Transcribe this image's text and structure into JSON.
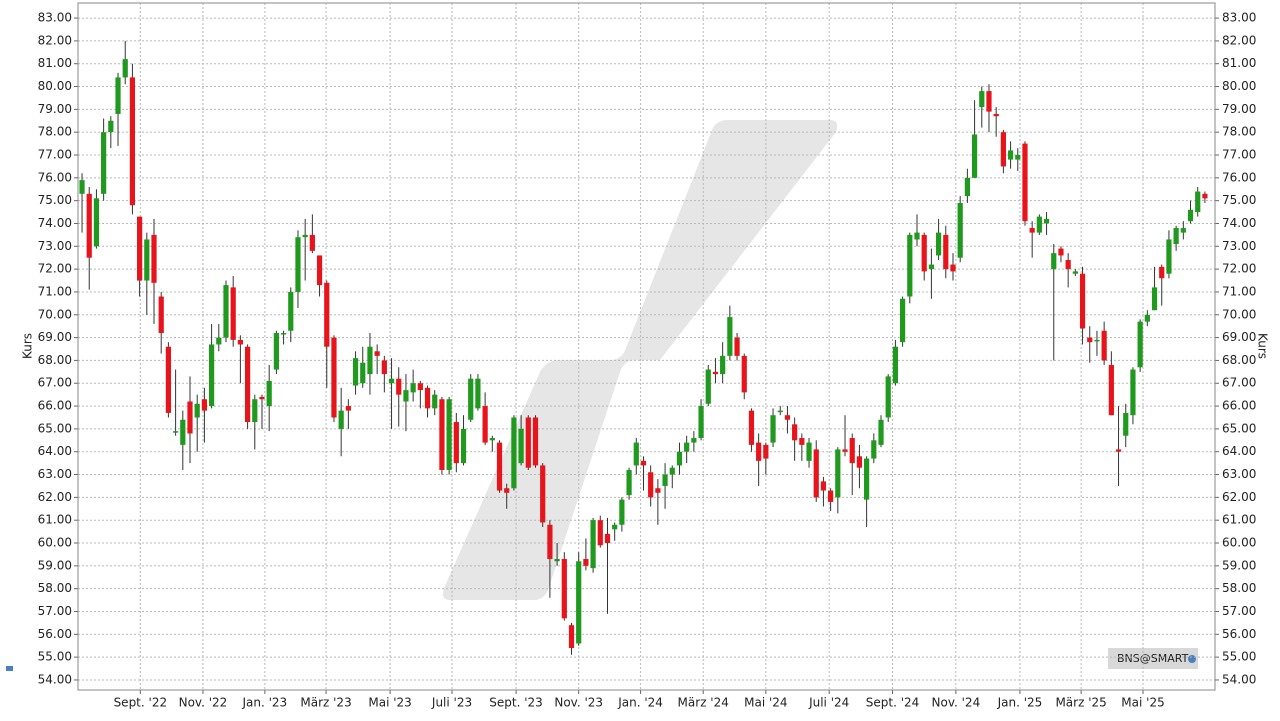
{
  "chart_data": {
    "type": "candlestick",
    "y_label": "Kurs",
    "source": "BNS@SMART",
    "grid": true,
    "colors": {
      "up": "#1f9a1f",
      "down": "#e8141c"
    },
    "xlim": [
      -0.56,
      157.4
    ],
    "xticks": [
      {
        "value": 8.1,
        "label": "Sept. '22"
      },
      {
        "value": 16.8,
        "label": "Nov. '22"
      },
      {
        "value": 25.4,
        "label": "Jan. '23"
      },
      {
        "value": 33.9,
        "label": "März '23"
      },
      {
        "value": 42.8,
        "label": "Mai '23"
      },
      {
        "value": 51.4,
        "label": "Juli '23"
      },
      {
        "value": 60.3,
        "label": "Sept. '23"
      },
      {
        "value": 69.0,
        "label": "Nov. '23"
      },
      {
        "value": 77.6,
        "label": "Jan. '24"
      },
      {
        "value": 86.3,
        "label": "März '24"
      },
      {
        "value": 95.0,
        "label": "Mai '24"
      },
      {
        "value": 103.8,
        "label": "Juli '24"
      },
      {
        "value": 112.6,
        "label": "Sept. '24"
      },
      {
        "value": 121.4,
        "label": "Nov. '24"
      },
      {
        "value": 130.3,
        "label": "Jan. '25"
      },
      {
        "value": 138.8,
        "label": "März '25"
      },
      {
        "value": 147.4,
        "label": "Mai '25"
      }
    ],
    "ylim": [
      53.56,
      83.66
    ],
    "yticks": [
      {
        "value": 54,
        "label": "54.00"
      },
      {
        "value": 55,
        "label": "55.00"
      },
      {
        "value": 56,
        "label": "56.00"
      },
      {
        "value": 57,
        "label": "57.00"
      },
      {
        "value": 58,
        "label": "58.00"
      },
      {
        "value": 59,
        "label": "59.00"
      },
      {
        "value": 60,
        "label": "60.00"
      },
      {
        "value": 61,
        "label": "61.00"
      },
      {
        "value": 62,
        "label": "62.00"
      },
      {
        "value": 63,
        "label": "63.00"
      },
      {
        "value": 64,
        "label": "64.00"
      },
      {
        "value": 65,
        "label": "65.00"
      },
      {
        "value": 66,
        "label": "66.00"
      },
      {
        "value": 67,
        "label": "67.00"
      },
      {
        "value": 68,
        "label": "68.00"
      },
      {
        "value": 69,
        "label": "69.00"
      },
      {
        "value": 70,
        "label": "70.00"
      },
      {
        "value": 71,
        "label": "71.00"
      },
      {
        "value": 72,
        "label": "72.00"
      },
      {
        "value": 73,
        "label": "73.00"
      },
      {
        "value": 74,
        "label": "74.00"
      },
      {
        "value": 75,
        "label": "75.00"
      },
      {
        "value": 76,
        "label": "76.00"
      },
      {
        "value": 77,
        "label": "77.00"
      },
      {
        "value": 78,
        "label": "78.00"
      },
      {
        "value": 79,
        "label": "79.00"
      },
      {
        "value": 80,
        "label": "80.00"
      },
      {
        "value": 81,
        "label": "81.00"
      },
      {
        "value": 82,
        "label": "82.00"
      },
      {
        "value": 83,
        "label": "83.00"
      }
    ],
    "open": [
      75.3,
      75.3,
      73.0,
      75.3,
      78.0,
      78.8,
      80.4,
      80.4,
      74.3,
      71.5,
      73.5,
      70.8,
      68.6,
      64.9,
      64.3,
      66.2,
      65.5,
      66.3,
      66.0,
      68.7,
      69.0,
      71.2,
      68.9,
      68.6,
      65.3,
      66.4,
      66.0,
      67.6,
      69.2,
      69.3,
      71.0,
      73.4,
      73.5,
      72.6,
      71.4,
      69.0,
      65.0,
      66.0,
      66.9,
      67.0,
      67.4,
      68.4,
      68.0,
      67.0,
      67.2,
      66.2,
      66.6,
      67.0,
      66.8,
      65.9,
      66.3,
      63.2,
      65.3,
      63.5,
      65.4,
      65.9,
      66.0,
      64.5,
      64.4,
      62.4,
      62.4,
      63.5,
      65.5,
      65.5,
      63.4,
      60.8,
      59.2,
      59.3,
      56.4,
      55.6,
      59.3,
      58.9,
      61.0,
      60.4,
      60.6,
      60.8,
      62.1,
      63.4,
      63.6,
      63.1,
      62.4,
      62.5,
      63.0,
      63.4,
      64.0,
      64.4,
      64.6,
      66.1,
      67.5,
      67.4,
      68.2,
      69.0,
      68.2,
      65.8,
      64.4,
      64.3,
      64.4,
      65.8,
      65.6,
      65.2,
      64.6,
      63.6,
      64.1,
      62.7,
      62.3,
      62.0,
      64.1,
      64.6,
      63.8,
      61.9,
      63.7,
      64.3,
      65.5,
      67.0,
      68.8,
      70.8,
      73.3,
      73.5,
      72.0,
      72.6,
      73.5,
      72.2,
      72.5,
      75.2,
      76.0,
      79.1,
      79.8,
      78.8,
      78.0,
      76.8,
      76.8,
      77.5,
      73.8,
      73.6,
      74.0,
      72.0,
      72.9,
      72.4,
      71.8,
      71.8,
      69.0,
      68.9,
      69.3,
      67.8,
      64.1,
      64.7,
      65.6,
      67.7,
      69.7,
      70.2,
      72.1,
      71.8,
      73.1,
      73.6,
      74.1,
      74.5,
      75.3
    ],
    "high": [
      76.2,
      75.6,
      75.5,
      78.6,
      78.7,
      80.6,
      82.0,
      81.0,
      74.3,
      73.6,
      74.2,
      71.0,
      68.8,
      67.6,
      65.8,
      67.3,
      66.5,
      66.8,
      69.6,
      69.6,
      71.5,
      71.7,
      69.1,
      68.7,
      66.5,
      66.5,
      67.8,
      69.3,
      69.3,
      71.2,
      73.7,
      74.2,
      74.4,
      72.6,
      71.5,
      69.1,
      66.8,
      66.3,
      68.4,
      68.6,
      69.2,
      68.7,
      68.2,
      68.1,
      67.7,
      67.4,
      67.6,
      67.1,
      66.9,
      66.7,
      66.4,
      66.4,
      65.7,
      65.6,
      67.4,
      67.4,
      66.6,
      64.7,
      64.5,
      62.6,
      65.6,
      65.6,
      65.6,
      65.6,
      63.5,
      61.0,
      60.0,
      59.6,
      56.5,
      59.6,
      60.2,
      61.1,
      61.2,
      61.1,
      60.9,
      62.0,
      63.3,
      64.6,
      63.8,
      63.4,
      62.8,
      63.5,
      63.4,
      64.4,
      64.7,
      64.9,
      66.3,
      67.8,
      68.1,
      68.8,
      70.4,
      69.2,
      68.3,
      65.9,
      64.8,
      64.4,
      65.9,
      66.0,
      66.0,
      65.5,
      64.8,
      64.6,
      64.5,
      62.9,
      62.4,
      64.2,
      65.6,
      64.8,
      64.3,
      63.8,
      64.8,
      65.6,
      67.4,
      68.9,
      70.8,
      73.6,
      74.4,
      73.6,
      72.9,
      74.2,
      73.9,
      72.7,
      75.2,
      76.4,
      79.4,
      80.0,
      80.1,
      79.1,
      78.1,
      77.6,
      77.3,
      77.6,
      74.1,
      74.4,
      74.5,
      73.1,
      73.0,
      72.7,
      72.0,
      72.1,
      69.5,
      69.3,
      69.7,
      68.4,
      66.0,
      66.1,
      67.7,
      69.8,
      70.2,
      72.1,
      72.2,
      73.7,
      73.9,
      74.1,
      75.0,
      75.6,
      75.4
    ],
    "low": [
      73.6,
      71.1,
      72.9,
      75.0,
      77.3,
      77.4,
      80.1,
      74.4,
      70.8,
      70.0,
      69.6,
      68.3,
      65.5,
      64.7,
      63.2,
      63.5,
      64.0,
      64.4,
      65.9,
      68.4,
      68.8,
      68.6,
      67.0,
      65.0,
      64.1,
      65.0,
      64.9,
      67.4,
      68.7,
      68.8,
      70.3,
      71.5,
      72.7,
      70.8,
      66.8,
      65.3,
      63.8,
      65.0,
      66.5,
      66.8,
      66.5,
      67.4,
      66.6,
      65.0,
      65.1,
      64.9,
      66.2,
      65.9,
      65.5,
      65.6,
      63.0,
      63.0,
      63.1,
      63.4,
      65.3,
      65.8,
      64.3,
      64.0,
      62.2,
      61.5,
      62.3,
      63.4,
      63.2,
      63.3,
      60.7,
      57.6,
      59.0,
      56.6,
      55.1,
      55.5,
      58.8,
      58.7,
      59.8,
      56.9,
      60.1,
      60.5,
      61.9,
      63.0,
      62.3,
      61.6,
      60.8,
      61.5,
      62.4,
      63.0,
      63.5,
      64.0,
      64.5,
      66.0,
      67.0,
      67.0,
      68.0,
      68.0,
      66.3,
      64.0,
      62.5,
      63.0,
      64.2,
      65.6,
      64.8,
      63.6,
      63.6,
      63.3,
      61.8,
      61.6,
      61.4,
      61.3,
      63.8,
      62.1,
      62.4,
      60.7,
      63.5,
      64.2,
      65.3,
      66.9,
      68.6,
      70.5,
      73.0,
      71.5,
      70.7,
      72.4,
      71.6,
      71.5,
      72.3,
      74.9,
      76.0,
      78.2,
      78.0,
      77.8,
      76.2,
      76.4,
      76.3,
      73.9,
      72.5,
      73.5,
      73.5,
      68.0,
      72.3,
      71.2,
      71.7,
      68.7,
      67.9,
      68.2,
      67.8,
      65.6,
      62.5,
      64.2,
      65.2,
      67.5,
      69.5,
      70.2,
      70.4,
      71.6,
      72.8,
      73.3,
      74.0,
      74.3,
      74.9
    ],
    "close": [
      75.9,
      72.5,
      75.1,
      78.0,
      78.5,
      80.4,
      81.2,
      74.8,
      71.5,
      73.3,
      71.4,
      69.2,
      65.7,
      64.9,
      65.4,
      64.8,
      66.1,
      65.8,
      68.7,
      69.0,
      71.3,
      68.9,
      68.7,
      65.3,
      66.3,
      66.3,
      67.1,
      69.2,
      69.2,
      71.0,
      73.4,
      73.5,
      72.8,
      71.3,
      68.6,
      65.5,
      65.8,
      65.8,
      68.1,
      67.9,
      68.6,
      68.2,
      67.4,
      67.2,
      66.5,
      66.7,
      67.0,
      66.7,
      65.9,
      66.5,
      63.2,
      66.3,
      63.5,
      65.0,
      67.2,
      67.2,
      64.4,
      64.6,
      62.3,
      62.2,
      65.5,
      65.0,
      63.3,
      63.4,
      60.9,
      59.3,
      59.3,
      56.7,
      55.4,
      59.2,
      59.0,
      61.0,
      59.9,
      60.0,
      60.8,
      61.9,
      63.2,
      64.4,
      63.4,
      62.0,
      62.2,
      63.0,
      63.3,
      64.0,
      64.4,
      64.6,
      66.0,
      67.6,
      67.4,
      68.2,
      69.9,
      68.2,
      66.6,
      64.3,
      63.6,
      63.7,
      65.6,
      65.8,
      65.4,
      64.5,
      64.3,
      64.4,
      62.0,
      62.3,
      61.8,
      64.1,
      64.0,
      63.5,
      63.3,
      63.7,
      64.5,
      65.4,
      67.3,
      68.6,
      70.7,
      73.5,
      73.6,
      71.9,
      72.2,
      73.6,
      72.0,
      71.9,
      74.9,
      76.0,
      77.9,
      79.8,
      78.9,
      78.7,
      76.5,
      77.2,
      77.0,
      74.1,
      73.6,
      74.3,
      74.2,
      72.7,
      72.6,
      72.0,
      71.9,
      69.4,
      68.8,
      68.9,
      68.0,
      65.6,
      64.0,
      65.7,
      67.6,
      69.7,
      70.0,
      71.2,
      71.6,
      73.3,
      73.8,
      73.8,
      74.6,
      75.4,
      75.1
    ]
  }
}
